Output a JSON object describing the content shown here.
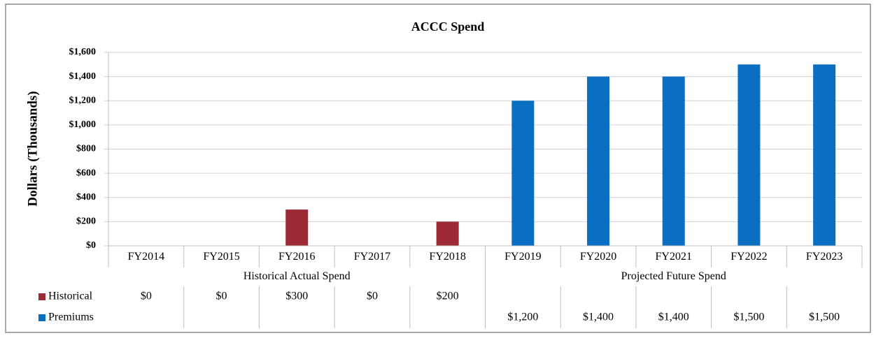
{
  "chart_data": {
    "type": "bar",
    "title": "ACCC Spend",
    "y_label": "Dollars (Thousands)",
    "categories": [
      "FY2014",
      "FY2015",
      "FY2016",
      "FY2017",
      "FY2018",
      "FY2019",
      "FY2020",
      "FY2021",
      "FY2022",
      "FY2023"
    ],
    "groups": [
      {
        "label": "Historical Actual Spend",
        "count": 5
      },
      {
        "label": "Projected Future Spend",
        "count": 5
      }
    ],
    "series": [
      {
        "name": "Historical",
        "color": "#9e2a36",
        "values": [
          0,
          0,
          300,
          0,
          200,
          null,
          null,
          null,
          null,
          null
        ],
        "value_labels": [
          "$0",
          "$0",
          "$300",
          "$0",
          "$200",
          null,
          null,
          null,
          null,
          null
        ]
      },
      {
        "name": "Premiums",
        "color": "#0a6fc2",
        "values": [
          null,
          null,
          null,
          null,
          null,
          1200,
          1400,
          1400,
          1500,
          1500
        ],
        "value_labels": [
          null,
          null,
          null,
          null,
          null,
          "$1,200",
          "$1,400",
          "$1,400",
          "$1,500",
          "$1,500"
        ]
      }
    ],
    "ylim": [
      0,
      1600
    ],
    "yticks": [
      {
        "value": 0,
        "label": "$0"
      },
      {
        "value": 200,
        "label": "$200"
      },
      {
        "value": 400,
        "label": "$400"
      },
      {
        "value": 600,
        "label": "$600"
      },
      {
        "value": 800,
        "label": "$800"
      },
      {
        "value": 1000,
        "label": "$1,000"
      },
      {
        "value": 1200,
        "label": "$1,200"
      },
      {
        "value": 1400,
        "label": "$1,400"
      },
      {
        "value": 1600,
        "label": "$1,600"
      }
    ],
    "grid": true
  }
}
